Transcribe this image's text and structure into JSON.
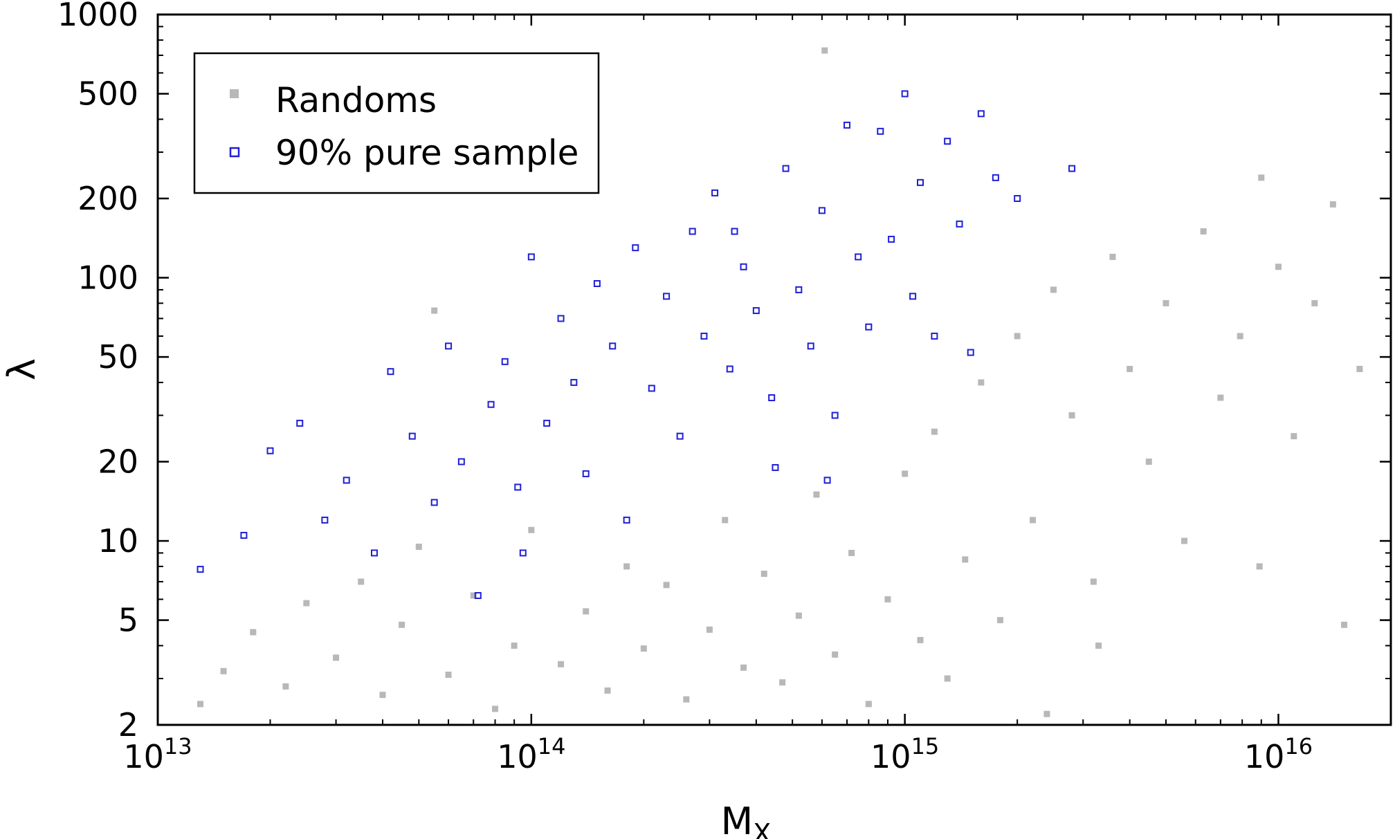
{
  "chart_data": {
    "type": "scatter",
    "xlabel": "M",
    "xlabel_sub": "X",
    "ylabel": "λ",
    "x_scale": "log",
    "y_scale": "log",
    "xlim": [
      10000000000000.0,
      2e+16
    ],
    "ylim": [
      2,
      1000
    ],
    "x_ticks": [
      {
        "value": 10000000000000.0,
        "base": "10",
        "exp": "13"
      },
      {
        "value": 100000000000000.0,
        "base": "10",
        "exp": "14"
      },
      {
        "value": 1000000000000000.0,
        "base": "10",
        "exp": "15"
      },
      {
        "value": 1e+16,
        "base": "10",
        "exp": "16"
      }
    ],
    "y_ticks": [
      {
        "value": 2,
        "label": "2"
      },
      {
        "value": 5,
        "label": "5"
      },
      {
        "value": 10,
        "label": "10"
      },
      {
        "value": 20,
        "label": "20"
      },
      {
        "value": 50,
        "label": "50"
      },
      {
        "value": 100,
        "label": "100"
      },
      {
        "value": 200,
        "label": "200"
      },
      {
        "value": 500,
        "label": "500"
      },
      {
        "value": 1000,
        "label": "1000"
      }
    ],
    "grid": false,
    "legend_position": "top-left",
    "series": [
      {
        "name": "Randoms",
        "color": "#b8b8b8",
        "marker": "filled-square",
        "points": [
          [
            13000000000000.0,
            2.4
          ],
          [
            15000000000000.0,
            3.2
          ],
          [
            18000000000000.0,
            4.5
          ],
          [
            22000000000000.0,
            2.8
          ],
          [
            25000000000000.0,
            5.8
          ],
          [
            30000000000000.0,
            3.6
          ],
          [
            35000000000000.0,
            7.0
          ],
          [
            40000000000000.0,
            2.6
          ],
          [
            45000000000000.0,
            4.8
          ],
          [
            50000000000000.0,
            9.5
          ],
          [
            60000000000000.0,
            3.1
          ],
          [
            70000000000000.0,
            6.2
          ],
          [
            80000000000000.0,
            2.3
          ],
          [
            90000000000000.0,
            4.0
          ],
          [
            100000000000000.0,
            11.0
          ],
          [
            120000000000000.0,
            3.4
          ],
          [
            140000000000000.0,
            5.4
          ],
          [
            160000000000000.0,
            2.7
          ],
          [
            180000000000000.0,
            8.0
          ],
          [
            200000000000000.0,
            3.9
          ],
          [
            230000000000000.0,
            6.8
          ],
          [
            260000000000000.0,
            2.5
          ],
          [
            300000000000000.0,
            4.6
          ],
          [
            330000000000000.0,
            12.0
          ],
          [
            370000000000000.0,
            3.3
          ],
          [
            420000000000000.0,
            7.5
          ],
          [
            470000000000000.0,
            2.9
          ],
          [
            520000000000000.0,
            5.2
          ],
          [
            580000000000000.0,
            15.0
          ],
          [
            650000000000000.0,
            3.7
          ],
          [
            720000000000000.0,
            9.0
          ],
          [
            800000000000000.0,
            2.4
          ],
          [
            900000000000000.0,
            6.0
          ],
          [
            1000000000000000.0,
            18.0
          ],
          [
            1100000000000000.0,
            4.2
          ],
          [
            1200000000000000.0,
            26.0
          ],
          [
            1300000000000000.0,
            3.0
          ],
          [
            1450000000000000.0,
            8.5
          ],
          [
            1600000000000000.0,
            40.0
          ],
          [
            1800000000000000.0,
            5.0
          ],
          [
            2000000000000000.0,
            60.0
          ],
          [
            2200000000000000.0,
            12.0
          ],
          [
            2500000000000000.0,
            90.0
          ],
          [
            2800000000000000.0,
            30.0
          ],
          [
            3200000000000000.0,
            7.0
          ],
          [
            3600000000000000.0,
            120.0
          ],
          [
            4000000000000000.0,
            45.0
          ],
          [
            4500000000000000.0,
            20.0
          ],
          [
            5000000000000000.0,
            80.0
          ],
          [
            5600000000000000.0,
            10.0
          ],
          [
            6300000000000000.0,
            150.0
          ],
          [
            7000000000000000.0,
            35.0
          ],
          [
            7900000000000000.0,
            60.0
          ],
          [
            8900000000000000.0,
            8.0
          ],
          [
            1e+16,
            110.0
          ],
          [
            1.1e+16,
            25.0
          ],
          [
            1.25e+16,
            80.0
          ],
          [
            1.4e+16,
            190.0
          ],
          [
            1.5e+16,
            4.8
          ],
          [
            1.65e+16,
            45.0
          ],
          [
            610000000000000.0,
            730.0
          ],
          [
            9000000000000000.0,
            240.0
          ],
          [
            3300000000000000.0,
            4.0
          ],
          [
            2400000000000000.0,
            2.2
          ],
          [
            55000000000000.0,
            75.0
          ]
        ]
      },
      {
        "name": "90% pure sample",
        "color": "#1f1fd6",
        "marker": "open-square",
        "points": [
          [
            13000000000000.0,
            7.8
          ],
          [
            17000000000000.0,
            10.5
          ],
          [
            20000000000000.0,
            22.0
          ],
          [
            24000000000000.0,
            28.0
          ],
          [
            28000000000000.0,
            12.0
          ],
          [
            32000000000000.0,
            17.0
          ],
          [
            38000000000000.0,
            9.0
          ],
          [
            42000000000000.0,
            44.0
          ],
          [
            48000000000000.0,
            25.0
          ],
          [
            55000000000000.0,
            14.0
          ],
          [
            60000000000000.0,
            55.0
          ],
          [
            65000000000000.0,
            20.0
          ],
          [
            72000000000000.0,
            6.2
          ],
          [
            78000000000000.0,
            33.0
          ],
          [
            85000000000000.0,
            48.0
          ],
          [
            92000000000000.0,
            16.0
          ],
          [
            100000000000000.0,
            120.0
          ],
          [
            110000000000000.0,
            28.0
          ],
          [
            120000000000000.0,
            70.0
          ],
          [
            130000000000000.0,
            40.0
          ],
          [
            140000000000000.0,
            18.0
          ],
          [
            150000000000000.0,
            95.0
          ],
          [
            165000000000000.0,
            55.0
          ],
          [
            180000000000000.0,
            12.0
          ],
          [
            190000000000000.0,
            130.0
          ],
          [
            210000000000000.0,
            38.0
          ],
          [
            230000000000000.0,
            85.0
          ],
          [
            250000000000000.0,
            25.0
          ],
          [
            270000000000000.0,
            150.0
          ],
          [
            290000000000000.0,
            60.0
          ],
          [
            310000000000000.0,
            210.0
          ],
          [
            340000000000000.0,
            45.0
          ],
          [
            370000000000000.0,
            110.0
          ],
          [
            400000000000000.0,
            75.0
          ],
          [
            440000000000000.0,
            35.0
          ],
          [
            480000000000000.0,
            260.0
          ],
          [
            520000000000000.0,
            90.0
          ],
          [
            560000000000000.0,
            55.0
          ],
          [
            600000000000000.0,
            180.0
          ],
          [
            650000000000000.0,
            30.0
          ],
          [
            700000000000000.0,
            380.0
          ],
          [
            750000000000000.0,
            120.0
          ],
          [
            800000000000000.0,
            65.0
          ],
          [
            860000000000000.0,
            360.0
          ],
          [
            920000000000000.0,
            140.0
          ],
          [
            1000000000000000.0,
            500.0
          ],
          [
            1050000000000000.0,
            85.0
          ],
          [
            1100000000000000.0,
            230.0
          ],
          [
            1200000000000000.0,
            60.0
          ],
          [
            1300000000000000.0,
            330.0
          ],
          [
            1400000000000000.0,
            160.0
          ],
          [
            1500000000000000.0,
            52.0
          ],
          [
            1600000000000000.0,
            420.0
          ],
          [
            1750000000000000.0,
            240.0
          ],
          [
            2000000000000000.0,
            200.0
          ],
          [
            2800000000000000.0,
            260.0
          ],
          [
            95000000000000.0,
            9.0
          ],
          [
            450000000000000.0,
            19.0
          ],
          [
            620000000000000.0,
            17.0
          ],
          [
            350000000000000.0,
            150.0
          ]
        ]
      }
    ]
  }
}
